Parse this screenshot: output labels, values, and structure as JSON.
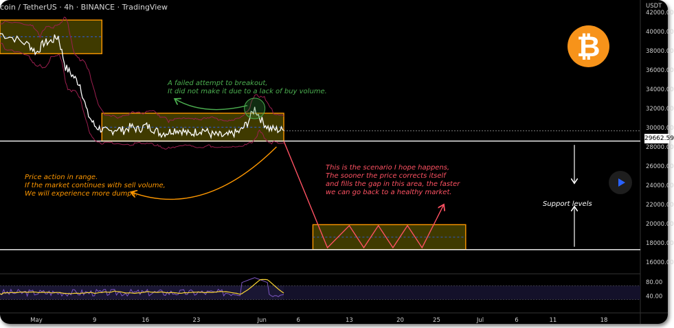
{
  "header": {
    "title": "coin / TetherUS · 4h · BINANCE · TradingView"
  },
  "chart_data": {
    "type": "line",
    "title": "",
    "xlabel": "",
    "ylabel": "",
    "y_axis_unit": "USDT",
    "y_ticks": [
      "42000.00",
      "40000.00",
      "38000.00",
      "36000.00",
      "34000.00",
      "32000.00",
      "30000.00",
      "28000.00",
      "26000.00",
      "24000.00",
      "22000.00",
      "20000.00",
      "18000.00",
      "16000.00"
    ],
    "y_tick_values": [
      42000,
      40000,
      38000,
      36000,
      34000,
      32000,
      30000,
      28000,
      26000,
      24000,
      22000,
      20000,
      18000,
      16000
    ],
    "ylim": [
      15000,
      43000
    ],
    "x_ticks": [
      "May",
      "9",
      "16",
      "23",
      "Jun",
      "6",
      "13",
      "20",
      "25",
      "Jul",
      "6",
      "11",
      "18"
    ],
    "x_tick_days": [
      1,
      9,
      16,
      23,
      32,
      37,
      44,
      51,
      56,
      62,
      67,
      72,
      79
    ],
    "xlim": [
      -4,
      84
    ],
    "current_price": 29662.59,
    "current_price_label": "29662.59",
    "price_series": {
      "day": [
        -4,
        -2,
        0,
        1,
        2,
        3,
        4,
        5,
        6,
        7,
        8,
        9,
        10,
        11,
        12,
        13,
        14,
        15,
        16,
        17,
        18,
        19,
        20,
        21,
        22,
        23,
        24,
        25,
        26,
        27,
        28,
        29,
        30,
        31,
        32,
        33,
        34,
        35
      ],
      "close": [
        39800,
        39300,
        38600,
        37800,
        38800,
        39000,
        39500,
        36300,
        35400,
        34500,
        31500,
        30200,
        29800,
        29500,
        29900,
        29700,
        30100,
        29800,
        30200,
        29900,
        29400,
        29500,
        29800,
        29700,
        29300,
        29600,
        29800,
        29300,
        29200,
        29100,
        29400,
        29600,
        30500,
        32000,
        30700,
        29900,
        29800,
        29700
      ]
    },
    "zones": [
      {
        "name": "upper-range",
        "x": [
          -4,
          10
        ],
        "y_low": 37700,
        "y_high": 41200
      },
      {
        "name": "current-range",
        "x": [
          10,
          35
        ],
        "y_low": 28600,
        "y_high": 31500
      },
      {
        "name": "target-range",
        "x": [
          39,
          60
        ],
        "y_low": 17300,
        "y_high": 19900
      }
    ],
    "support_lines": [
      28600,
      17300
    ],
    "scenario_path": [
      [
        35,
        28600
      ],
      [
        41,
        17500
      ],
      [
        44,
        19800
      ],
      [
        46,
        17500
      ],
      [
        48,
        19800
      ],
      [
        50,
        17500
      ],
      [
        52,
        19800
      ],
      [
        54,
        17500
      ],
      [
        57,
        22000
      ]
    ],
    "rsi": {
      "levels": [
        "80.00",
        "40.00"
      ],
      "level_values": [
        80,
        40
      ],
      "upper_band": 70,
      "lower_band": 30
    },
    "colors": {
      "background": "#000000",
      "price": "#ffffff",
      "zone_border": "#ff9800",
      "zone_fill": "#4a4400",
      "bands": "#9c1f4f",
      "annotation_green": "#4caf50",
      "annotation_orange": "#ff9800",
      "annotation_red": "#ff5263",
      "rsi": "#7e57c2",
      "rsi_ma": "#fdd835"
    }
  },
  "annotations": {
    "green": [
      "A failed attempt to breakout,",
      "It did not make it due to a lack of buy volume."
    ],
    "orange": [
      "Price action in range.",
      "If the market continues with sell volume,",
      "We will experience more dumps."
    ],
    "red": [
      "This is the scenario I hope happens,",
      "The sooner the price corrects itself",
      "and fills the gap in this area, the faster",
      "we can go back to a healthy market."
    ],
    "support": "Support levels"
  }
}
